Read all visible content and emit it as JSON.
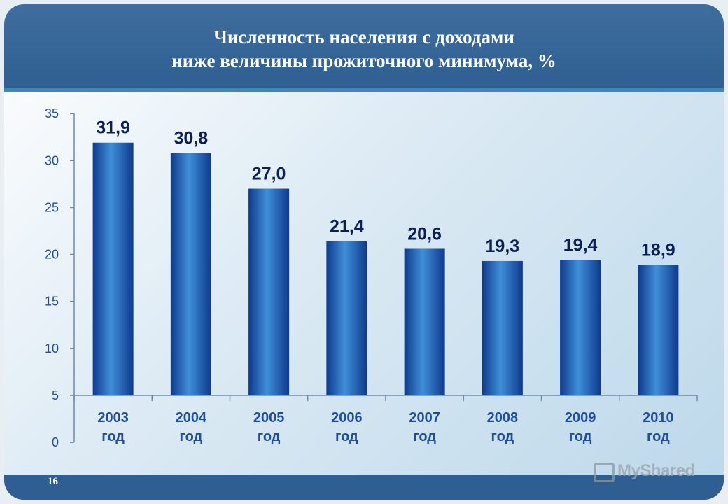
{
  "slide": {
    "title_line1": "Численность населения с доходами",
    "title_line2": "ниже величины прожиточного минимума, %",
    "page_number": "16",
    "watermark": "MyShared"
  },
  "colors": {
    "header": "#2f5f92",
    "bar_dark": "#0f3a8c",
    "bar_light": "#3f8fd8",
    "label": "#0b1f56",
    "axis_text": "#1e4e9e"
  },
  "chart_data": {
    "type": "bar",
    "title": "Численность населения с доходами ниже величины прожиточного минимума, %",
    "categories": [
      "2003",
      "2004",
      "2005",
      "2006",
      "2007",
      "2008",
      "2009",
      "2010"
    ],
    "category_suffix": "год",
    "values": [
      31.9,
      30.8,
      27.0,
      21.4,
      20.6,
      19.3,
      19.4,
      18.9
    ],
    "data_labels": [
      "31,9",
      "30,8",
      "27,0",
      "21,4",
      "20,6",
      "19,3",
      "19,4",
      "18,9"
    ],
    "y_ticks": [
      0,
      5,
      10,
      15,
      20,
      25,
      30,
      35
    ],
    "ylim": [
      0,
      35
    ],
    "grid": false,
    "legend": "none"
  }
}
